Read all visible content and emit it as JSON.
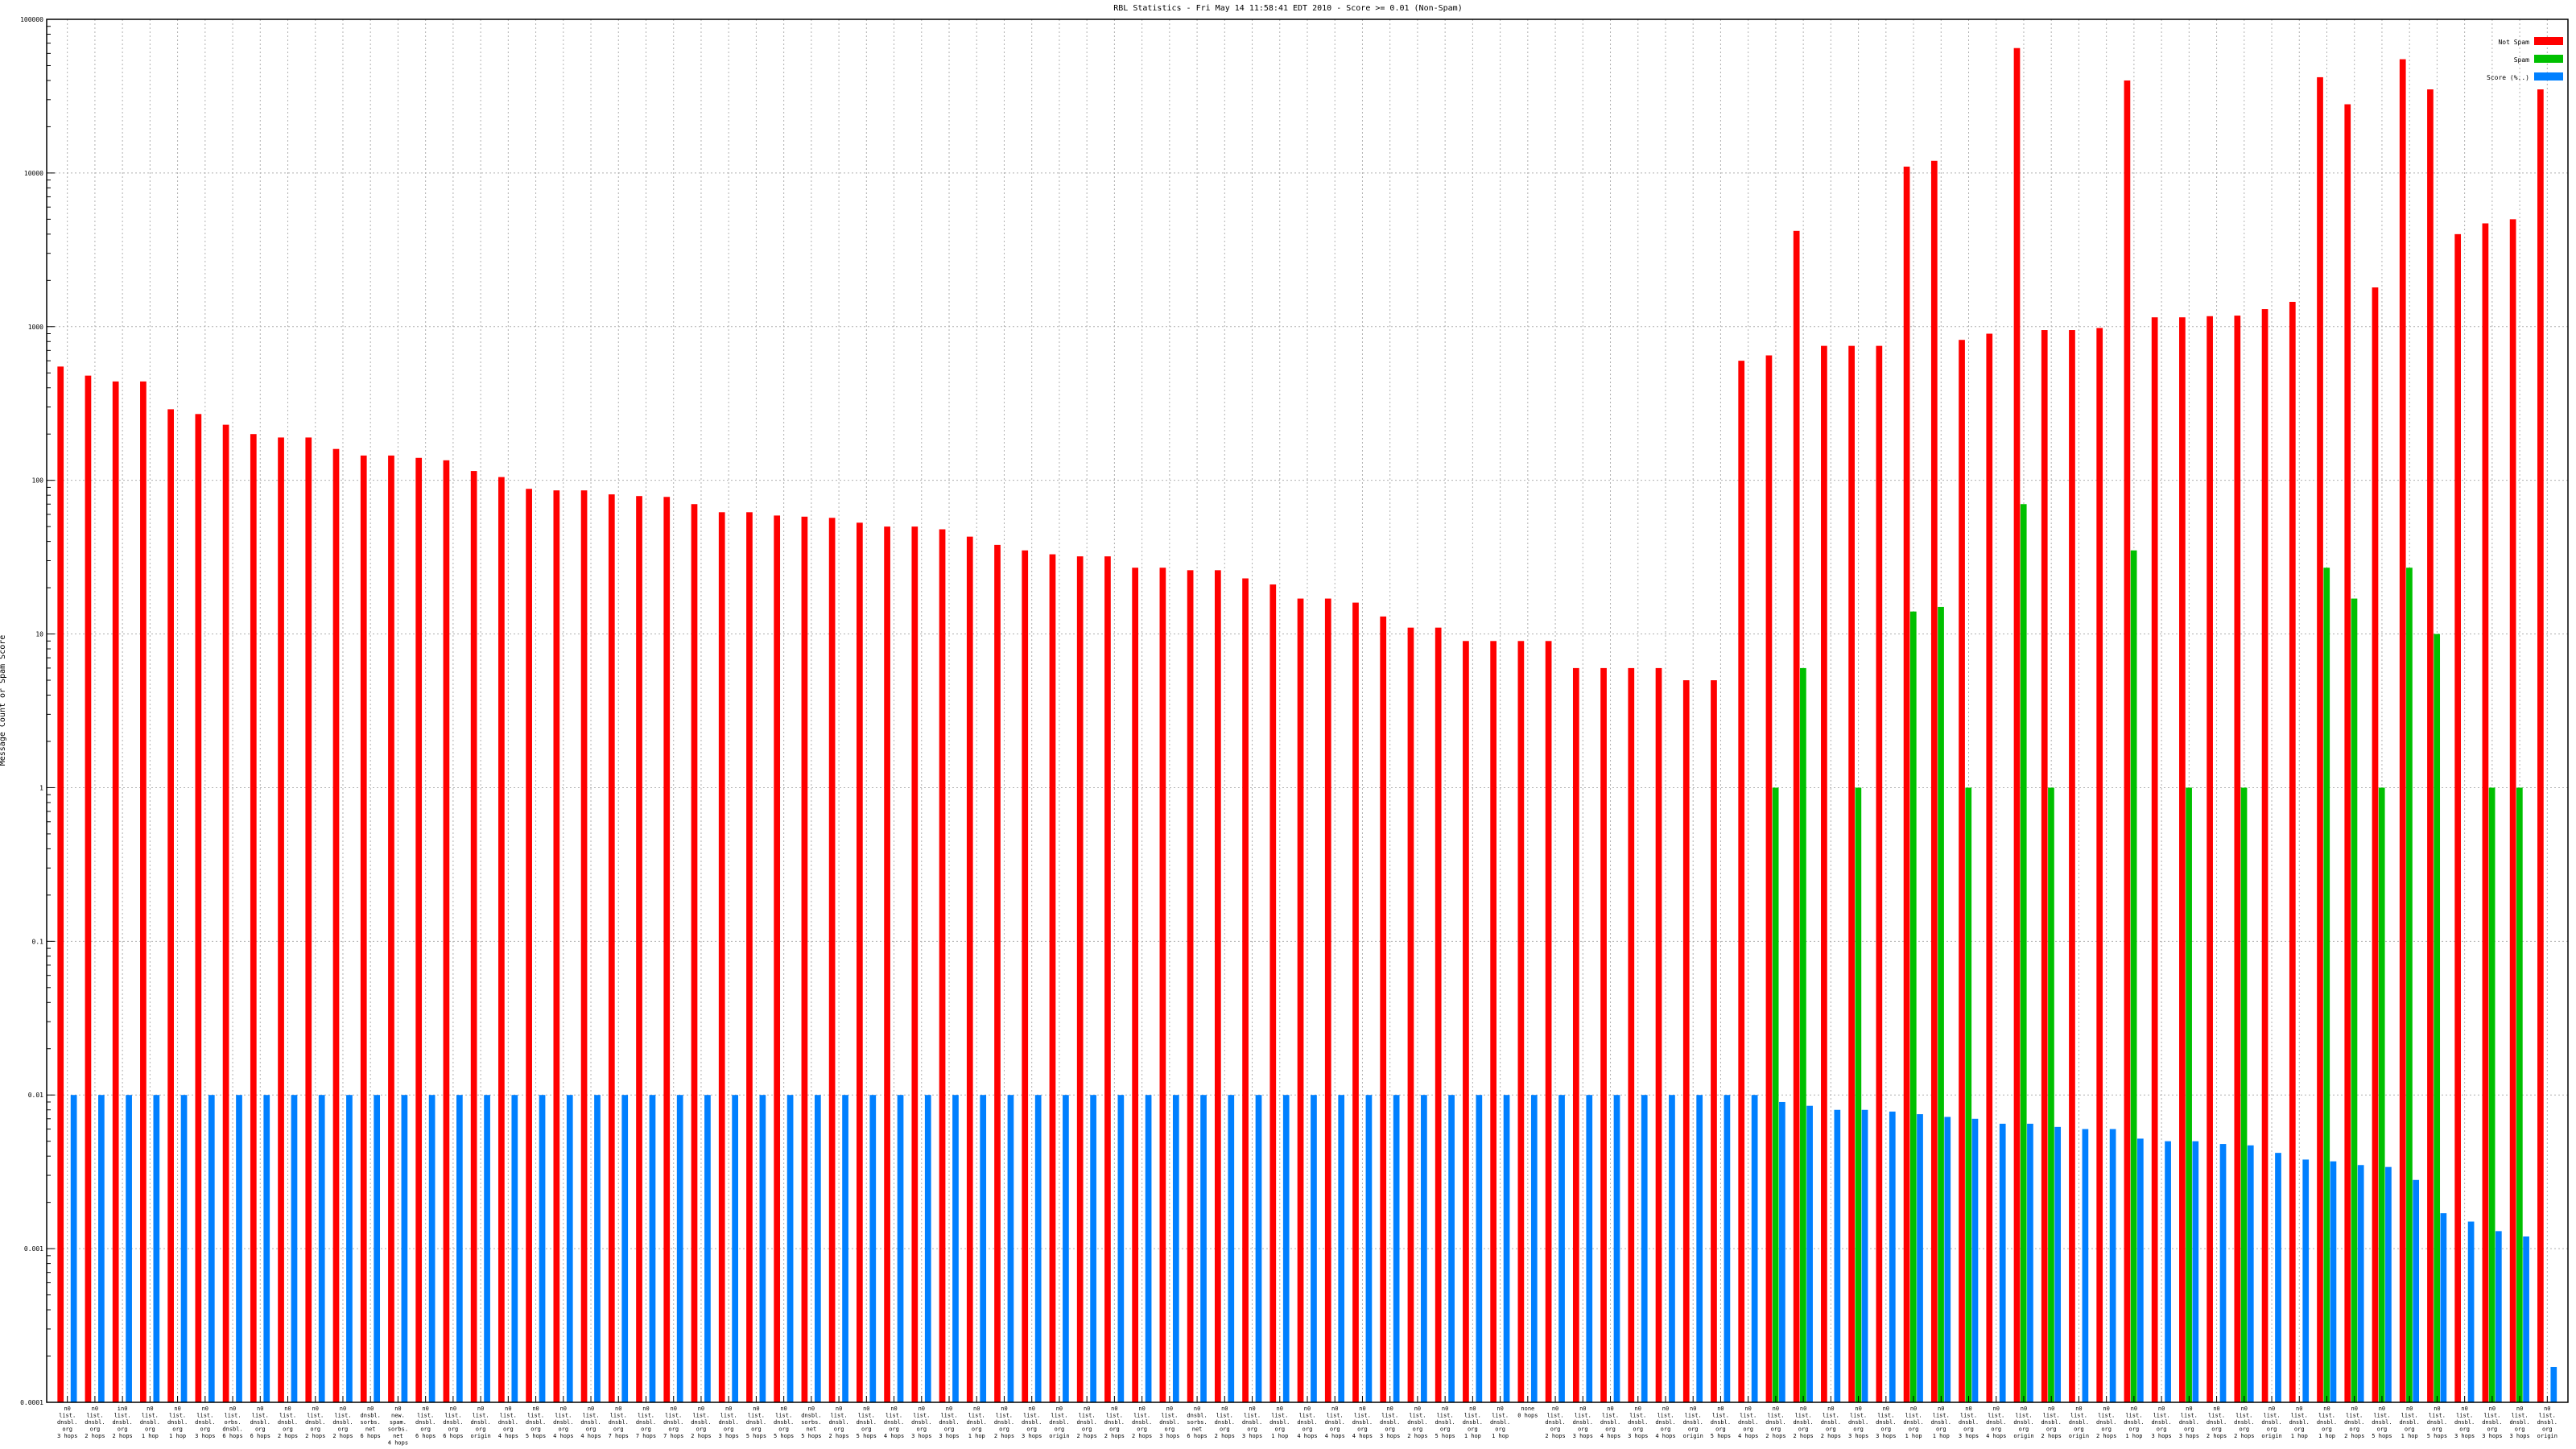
{
  "chart_data": {
    "type": "bar",
    "title": "RBL Statistics - Fri May 14 11:58:41 EDT 2010 - Score >= 0.01 (Non-Spam)",
    "xlabel": "",
    "ylabel": "Message Count or Spam Score",
    "yscale": "log",
    "ylim": [
      0.0001,
      100000
    ],
    "yticks": [
      "0.0001",
      "0.001",
      "0.01",
      "0.1",
      "1",
      "10",
      "100",
      "1000",
      "10000",
      "100000"
    ],
    "grid": true,
    "legend_position": "top-right",
    "series": [
      {
        "name": "Not Spam",
        "color": "#ff0000"
      },
      {
        "name": "Spam",
        "color": "#00c000"
      },
      {
        "name": "Score (%..)",
        "color": "#0080ff"
      }
    ],
    "categories": [
      {
        "lines": [
          "n0",
          "list.",
          "dnsbl.",
          "org",
          "3 hops"
        ],
        "not_spam": 550,
        "spam": null,
        "score": 0.01
      },
      {
        "lines": [
          "n0",
          "list.",
          "dnsbl.",
          "org",
          "2 hops"
        ],
        "not_spam": 480,
        "spam": null,
        "score": 0.01
      },
      {
        "lines": [
          "in0",
          "list.",
          "dnsbl.",
          "org",
          "2 hops"
        ],
        "not_spam": 440,
        "spam": null,
        "score": 0.01
      },
      {
        "lines": [
          "n0",
          "list.",
          "dnsbl.",
          "org",
          "1 hop"
        ],
        "not_spam": 440,
        "spam": null,
        "score": 0.01
      },
      {
        "lines": [
          "n0",
          "list.",
          "dnsbl.",
          "org",
          "1 hop"
        ],
        "not_spam": 290,
        "spam": null,
        "score": 0.01
      },
      {
        "lines": [
          "n0",
          "list.",
          "dnsbl.",
          "org",
          "3 hops"
        ],
        "not_spam": 270,
        "spam": null,
        "score": 0.01
      },
      {
        "lines": [
          "n0",
          "list.",
          "orbs.",
          "dnsbl.",
          "6 hops"
        ],
        "not_spam": 230,
        "spam": null,
        "score": 0.01
      },
      {
        "lines": [
          "n0",
          "list.",
          "dnsbl.",
          "org",
          "6 hops"
        ],
        "not_spam": 200,
        "spam": null,
        "score": 0.01
      },
      {
        "lines": [
          "n0",
          "list.",
          "dnsbl.",
          "org",
          "2 hops"
        ],
        "not_spam": 190,
        "spam": null,
        "score": 0.01
      },
      {
        "lines": [
          "n0",
          "list.",
          "dnsbl.",
          "org",
          "2 hops"
        ],
        "not_spam": 190,
        "spam": null,
        "score": 0.01
      },
      {
        "lines": [
          "n0",
          "list.",
          "dnsbl.",
          "org",
          "2 hops"
        ],
        "not_spam": 160,
        "spam": null,
        "score": 0.01
      },
      {
        "lines": [
          "n0",
          "dnsbl.",
          "sorbs.",
          "net",
          "6 hops"
        ],
        "not_spam": 145,
        "spam": null,
        "score": 0.01
      },
      {
        "lines": [
          "n0",
          "new.",
          "spam.",
          "sorbs.",
          "net",
          "4 hops"
        ],
        "not_spam": 145,
        "spam": null,
        "score": 0.01
      },
      {
        "lines": [
          "n0",
          "list.",
          "dnsbl.",
          "org",
          "6 hops"
        ],
        "not_spam": 140,
        "spam": null,
        "score": 0.01
      },
      {
        "lines": [
          "n0",
          "list.",
          "dnsbl.",
          "org",
          "6 hops"
        ],
        "not_spam": 135,
        "spam": null,
        "score": 0.01
      },
      {
        "lines": [
          "n0",
          "list.",
          "dnsbl.",
          "org",
          "origin"
        ],
        "not_spam": 115,
        "spam": null,
        "score": 0.01
      },
      {
        "lines": [
          "n0",
          "list.",
          "dnsbl.",
          "org",
          "4 hops"
        ],
        "not_spam": 105,
        "spam": null,
        "score": 0.01
      },
      {
        "lines": [
          "n0",
          "list.",
          "dnsbl.",
          "org",
          "5 hops"
        ],
        "not_spam": 88,
        "spam": null,
        "score": 0.01
      },
      {
        "lines": [
          "n0",
          "list.",
          "dnsbl.",
          "org",
          "4 hops"
        ],
        "not_spam": 86,
        "spam": null,
        "score": 0.01
      },
      {
        "lines": [
          "n0",
          "list.",
          "dnsbl.",
          "org",
          "4 hops"
        ],
        "not_spam": 86,
        "spam": null,
        "score": 0.01
      },
      {
        "lines": [
          "n0",
          "list.",
          "dnsbl.",
          "org",
          "7 hops"
        ],
        "not_spam": 81,
        "spam": null,
        "score": 0.01
      },
      {
        "lines": [
          "n0",
          "list.",
          "dnsbl.",
          "org",
          "7 hops"
        ],
        "not_spam": 79,
        "spam": null,
        "score": 0.01
      },
      {
        "lines": [
          "n0",
          "list.",
          "dnsbl.",
          "org",
          "7 hops"
        ],
        "not_spam": 78,
        "spam": null,
        "score": 0.01
      },
      {
        "lines": [
          "n0",
          "list.",
          "dnsbl.",
          "org",
          "2 hops"
        ],
        "not_spam": 70,
        "spam": null,
        "score": 0.01
      },
      {
        "lines": [
          "n0",
          "list.",
          "dnsbl.",
          "org",
          "3 hops"
        ],
        "not_spam": 62,
        "spam": null,
        "score": 0.01
      },
      {
        "lines": [
          "n0",
          "list.",
          "dnsbl.",
          "org",
          "5 hops"
        ],
        "not_spam": 62,
        "spam": null,
        "score": 0.01
      },
      {
        "lines": [
          "n0",
          "list.",
          "dnsbl.",
          "org",
          "5 hops"
        ],
        "not_spam": 59,
        "spam": null,
        "score": 0.01
      },
      {
        "lines": [
          "n0",
          "dnsbl.",
          "sorbs.",
          "net",
          "5 hops"
        ],
        "not_spam": 58,
        "spam": null,
        "score": 0.01
      },
      {
        "lines": [
          "n0",
          "list.",
          "dnsbl.",
          "org",
          "2 hops"
        ],
        "not_spam": 57,
        "spam": null,
        "score": 0.01
      },
      {
        "lines": [
          "n0",
          "list.",
          "dnsbl.",
          "org",
          "5 hops"
        ],
        "not_spam": 53,
        "spam": null,
        "score": 0.01
      },
      {
        "lines": [
          "n0",
          "list.",
          "dnsbl.",
          "org",
          "4 hops"
        ],
        "not_spam": 50,
        "spam": null,
        "score": 0.01
      },
      {
        "lines": [
          "n0",
          "list.",
          "dnsbl.",
          "org",
          "3 hops"
        ],
        "not_spam": 50,
        "spam": null,
        "score": 0.01
      },
      {
        "lines": [
          "n0",
          "list.",
          "dnsbl.",
          "org",
          "3 hops"
        ],
        "not_spam": 48,
        "spam": null,
        "score": 0.01
      },
      {
        "lines": [
          "n0",
          "list.",
          "dnsbl.",
          "org",
          "1 hop"
        ],
        "not_spam": 43,
        "spam": null,
        "score": 0.01
      },
      {
        "lines": [
          "n0",
          "list.",
          "dnsbl.",
          "org",
          "2 hops"
        ],
        "not_spam": 38,
        "spam": null,
        "score": 0.01
      },
      {
        "lines": [
          "n0",
          "list.",
          "dnsbl.",
          "org",
          "3 hops"
        ],
        "not_spam": 35,
        "spam": null,
        "score": 0.01
      },
      {
        "lines": [
          "n0",
          "list.",
          "dnsbl.",
          "org",
          "origin"
        ],
        "not_spam": 33,
        "spam": null,
        "score": 0.01
      },
      {
        "lines": [
          "n0",
          "list.",
          "dnsbl.",
          "org",
          "2 hops"
        ],
        "not_spam": 32,
        "spam": null,
        "score": 0.01
      },
      {
        "lines": [
          "n0",
          "list.",
          "dnsbl.",
          "org",
          "2 hops"
        ],
        "not_spam": 32,
        "spam": null,
        "score": 0.01
      },
      {
        "lines": [
          "n0",
          "list.",
          "dnsbl.",
          "org",
          "2 hops"
        ],
        "not_spam": 27,
        "spam": null,
        "score": 0.01
      },
      {
        "lines": [
          "n0",
          "list.",
          "dnsbl.",
          "org",
          "3 hops"
        ],
        "not_spam": 27,
        "spam": null,
        "score": 0.01
      },
      {
        "lines": [
          "n0",
          "dnsbl.",
          "sorbs.",
          "net",
          "6 hops"
        ],
        "not_spam": 26,
        "spam": null,
        "score": 0.01
      },
      {
        "lines": [
          "n0",
          "list.",
          "dnsbl.",
          "org",
          "2 hops"
        ],
        "not_spam": 26,
        "spam": null,
        "score": 0.01
      },
      {
        "lines": [
          "n0",
          "list.",
          "dnsbl.",
          "org",
          "3 hops"
        ],
        "not_spam": 23,
        "spam": null,
        "score": 0.01
      },
      {
        "lines": [
          "n0",
          "list.",
          "dnsbl.",
          "org",
          "1 hop"
        ],
        "not_spam": 21,
        "spam": null,
        "score": 0.01
      },
      {
        "lines": [
          "n0",
          "list.",
          "dnsbl.",
          "org",
          "4 hops"
        ],
        "not_spam": 17,
        "spam": null,
        "score": 0.01
      },
      {
        "lines": [
          "n0",
          "list.",
          "dnsbl.",
          "org",
          "4 hops"
        ],
        "not_spam": 17,
        "spam": null,
        "score": 0.01
      },
      {
        "lines": [
          "n0",
          "list.",
          "dnsbl.",
          "org",
          "4 hops"
        ],
        "not_spam": 16,
        "spam": null,
        "score": 0.01
      },
      {
        "lines": [
          "n0",
          "list.",
          "dnsbl.",
          "org",
          "3 hops"
        ],
        "not_spam": 13,
        "spam": null,
        "score": 0.01
      },
      {
        "lines": [
          "n0",
          "list.",
          "dnsbl.",
          "org",
          "2 hops"
        ],
        "not_spam": 11,
        "spam": null,
        "score": 0.01
      },
      {
        "lines": [
          "n0",
          "list.",
          "dnsbl.",
          "org",
          "5 hops"
        ],
        "not_spam": 11,
        "spam": null,
        "score": 0.01
      },
      {
        "lines": [
          "n0",
          "list.",
          "dnsbl.",
          "org",
          "1 hop"
        ],
        "not_spam": 9,
        "spam": null,
        "score": 0.01
      },
      {
        "lines": [
          "n0",
          "list.",
          "dnsbl.",
          "org",
          "1 hop"
        ],
        "not_spam": 9,
        "spam": null,
        "score": 0.01
      },
      {
        "lines": [
          "none",
          "0 hops"
        ],
        "not_spam": 9,
        "spam": null,
        "score": 0.01
      },
      {
        "lines": [
          "n0",
          "list.",
          "dnsbl.",
          "org",
          "2 hops"
        ],
        "not_spam": 9,
        "spam": null,
        "score": 0.01
      },
      {
        "lines": [
          "n0",
          "list.",
          "dnsbl.",
          "org",
          "3 hops"
        ],
        "not_spam": 6,
        "spam": null,
        "score": 0.01
      },
      {
        "lines": [
          "n0",
          "list.",
          "dnsbl.",
          "org",
          "4 hops"
        ],
        "not_spam": 6,
        "spam": null,
        "score": 0.01
      },
      {
        "lines": [
          "n0",
          "list.",
          "dnsbl.",
          "org",
          "3 hops"
        ],
        "not_spam": 6,
        "spam": null,
        "score": 0.01
      },
      {
        "lines": [
          "n0",
          "list.",
          "dnsbl.",
          "org",
          "4 hops"
        ],
        "not_spam": 6,
        "spam": null,
        "score": 0.01
      },
      {
        "lines": [
          "n0",
          "list.",
          "dnsbl.",
          "org",
          "origin"
        ],
        "not_spam": 5,
        "spam": null,
        "score": 0.01
      },
      {
        "lines": [
          "n0",
          "list.",
          "dnsbl.",
          "org",
          "5 hops"
        ],
        "not_spam": 5,
        "spam": null,
        "score": 0.01
      },
      {
        "lines": [
          "n0",
          "list.",
          "dnsbl.",
          "org",
          "4 hops"
        ],
        "not_spam": 600,
        "spam": null,
        "score": 0.01
      },
      {
        "lines": [
          "n0",
          "list.",
          "dnsbl.",
          "org",
          "2 hops"
        ],
        "not_spam": 650,
        "spam": 1,
        "score": 0.009
      },
      {
        "lines": [
          "n0",
          "list.",
          "dnsbl.",
          "org",
          "2 hops"
        ],
        "not_spam": 4200,
        "spam": 6,
        "score": 0.0085
      },
      {
        "lines": [
          "n0",
          "list.",
          "dnsbl.",
          "org",
          "2 hops"
        ],
        "not_spam": 750,
        "spam": null,
        "score": 0.008
      },
      {
        "lines": [
          "n0",
          "list.",
          "dnsbl.",
          "org",
          "3 hops"
        ],
        "not_spam": 750,
        "spam": 1,
        "score": 0.008
      },
      {
        "lines": [
          "n0",
          "list.",
          "dnsbl.",
          "org",
          "3 hops"
        ],
        "not_spam": 750,
        "spam": null,
        "score": 0.0078
      },
      {
        "lines": [
          "n0",
          "list.",
          "dnsbl.",
          "org",
          "1 hop"
        ],
        "not_spam": 11000,
        "spam": 14,
        "score": 0.0075
      },
      {
        "lines": [
          "n0",
          "list.",
          "dnsbl.",
          "org",
          "1 hop"
        ],
        "not_spam": 12000,
        "spam": 15,
        "score": 0.0072
      },
      {
        "lines": [
          "n0",
          "list.",
          "dnsbl.",
          "org",
          "3 hops"
        ],
        "not_spam": 820,
        "spam": 1,
        "score": 0.007
      },
      {
        "lines": [
          "n0",
          "list.",
          "dnsbl.",
          "org",
          "4 hops"
        ],
        "not_spam": 900,
        "spam": null,
        "score": 0.0065
      },
      {
        "lines": [
          "n0",
          "list.",
          "dnsbl.",
          "org",
          "origin"
        ],
        "not_spam": 65000,
        "spam": 70,
        "score": 0.0065
      },
      {
        "lines": [
          "n0",
          "list.",
          "dnsbl.",
          "org",
          "2 hops"
        ],
        "not_spam": 950,
        "spam": 1,
        "score": 0.0062
      },
      {
        "lines": [
          "n0",
          "list.",
          "dnsbl.",
          "org",
          "origin"
        ],
        "not_spam": 950,
        "spam": null,
        "score": 0.006
      },
      {
        "lines": [
          "n0",
          "list.",
          "dnsbl.",
          "org",
          "2 hops"
        ],
        "not_spam": 980,
        "spam": null,
        "score": 0.006
      },
      {
        "lines": [
          "n0",
          "list.",
          "dnsbl.",
          "org",
          "1 hop"
        ],
        "not_spam": 40000,
        "spam": 35,
        "score": 0.0052
      },
      {
        "lines": [
          "n0",
          "list.",
          "dnsbl.",
          "org",
          "3 hops"
        ],
        "not_spam": 1150,
        "spam": null,
        "score": 0.005
      },
      {
        "lines": [
          "n0",
          "list.",
          "dnsbl.",
          "org",
          "3 hops"
        ],
        "not_spam": 1150,
        "spam": 1,
        "score": 0.005
      },
      {
        "lines": [
          "n0",
          "list.",
          "dnsbl.",
          "org",
          "2 hops"
        ],
        "not_spam": 1170,
        "spam": null,
        "score": 0.0048
      },
      {
        "lines": [
          "n0",
          "list.",
          "dnsbl.",
          "org",
          "2 hops"
        ],
        "not_spam": 1180,
        "spam": 1,
        "score": 0.0047
      },
      {
        "lines": [
          "n0",
          "list.",
          "dnsbl.",
          "org",
          "origin"
        ],
        "not_spam": 1300,
        "spam": null,
        "score": 0.0042
      },
      {
        "lines": [
          "n0",
          "list.",
          "dnsbl.",
          "org",
          "1 hop"
        ],
        "not_spam": 1450,
        "spam": null,
        "score": 0.0038
      },
      {
        "lines": [
          "n0",
          "list.",
          "dnsbl.",
          "org",
          "1 hop"
        ],
        "not_spam": 42000,
        "spam": 27,
        "score": 0.0037
      },
      {
        "lines": [
          "n0",
          "list.",
          "dnsbl.",
          "org",
          "2 hops"
        ],
        "not_spam": 28000,
        "spam": 17,
        "score": 0.0035
      },
      {
        "lines": [
          "n0",
          "list.",
          "dnsbl.",
          "org",
          "5 hops"
        ],
        "not_spam": 1800,
        "spam": 1,
        "score": 0.0034
      },
      {
        "lines": [
          "n0",
          "list.",
          "dnsbl.",
          "org",
          "1 hop"
        ],
        "not_spam": 55000,
        "spam": 27,
        "score": 0.0028
      },
      {
        "lines": [
          "n0",
          "list.",
          "dnsbl.",
          "org",
          "5 hops"
        ],
        "not_spam": 35000,
        "spam": 10,
        "score": 0.0017
      },
      {
        "lines": [
          "n0",
          "list.",
          "dnsbl.",
          "org",
          "3 hops"
        ],
        "not_spam": 4000,
        "spam": null,
        "score": 0.0015
      },
      {
        "lines": [
          "n0",
          "list.",
          "dnsbl.",
          "org",
          "3 hops"
        ],
        "not_spam": 4700,
        "spam": 1,
        "score": 0.0013
      },
      {
        "lines": [
          "n0",
          "list.",
          "dnsbl.",
          "org",
          "3 hops"
        ],
        "not_spam": 5000,
        "spam": 1,
        "score": 0.0012
      },
      {
        "lines": [
          "n0",
          "list.",
          "dnsbl.",
          "org",
          "origin"
        ],
        "not_spam": 35000,
        "spam": null,
        "score": 0.00017
      }
    ]
  }
}
